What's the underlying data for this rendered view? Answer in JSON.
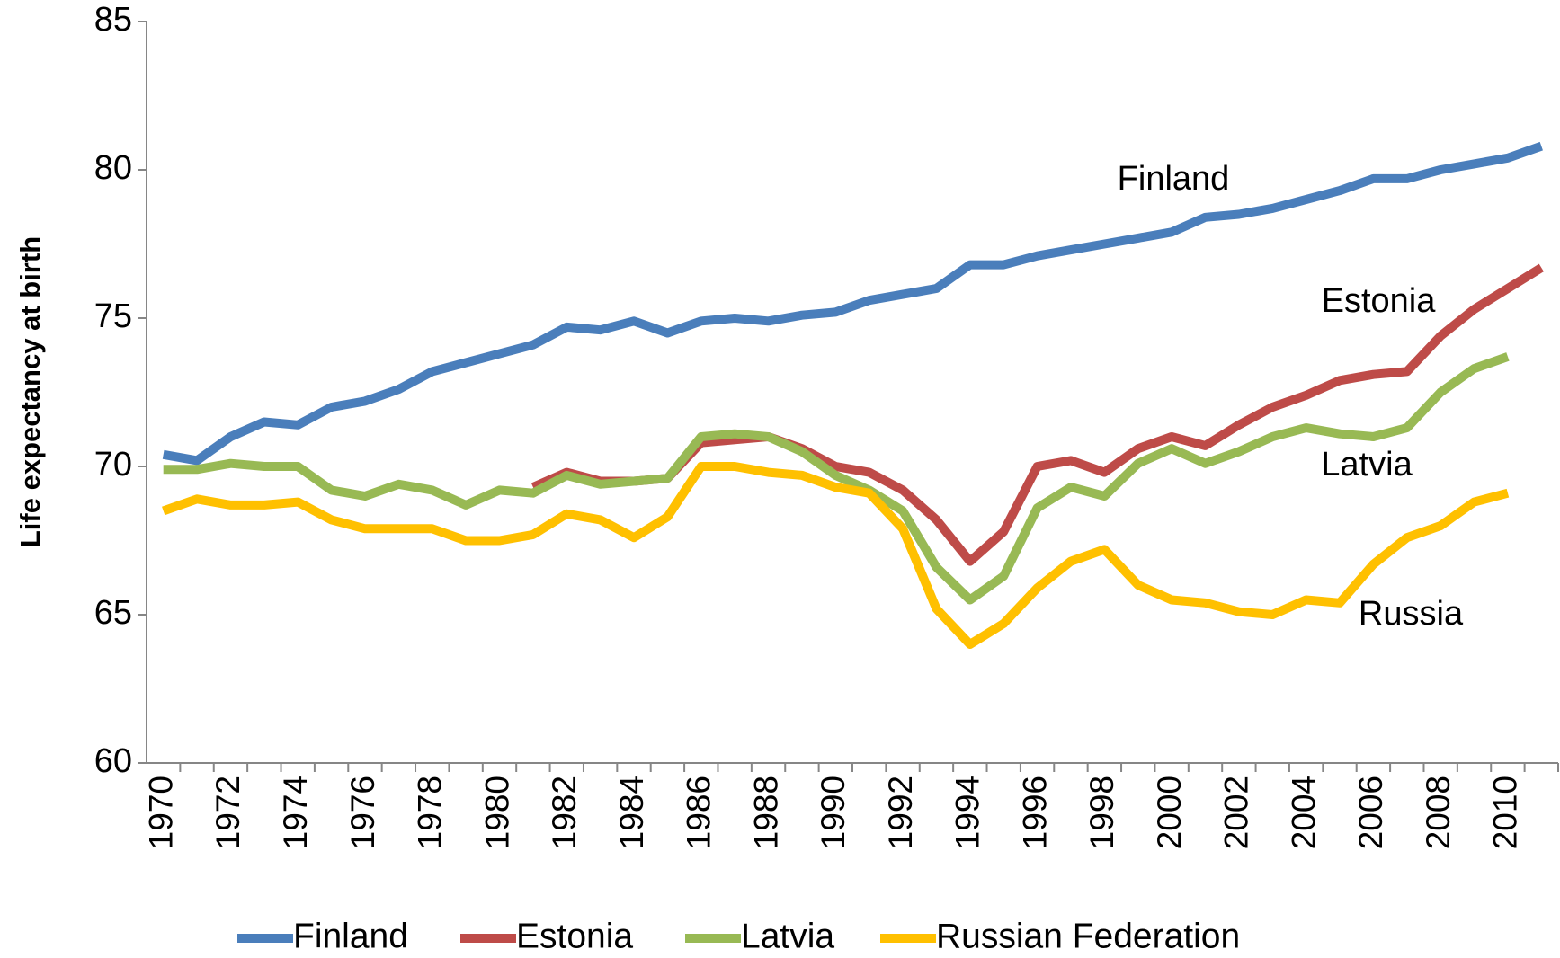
{
  "chart_data": {
    "type": "line",
    "y_label": "Life expectancy at birth",
    "categories": [
      "1970",
      null,
      "1972",
      null,
      "1974",
      null,
      "1976",
      null,
      "1978",
      null,
      "1980",
      null,
      "1982",
      null,
      "1984",
      null,
      "1986",
      null,
      "1988",
      null,
      "1990",
      null,
      "1992",
      null,
      "1994",
      null,
      "1996",
      null,
      "1998",
      null,
      "2000",
      null,
      "2002",
      null,
      "2004",
      null,
      "2006",
      null,
      "2008",
      null,
      "2010",
      null
    ],
    "series": [
      {
        "name": "Finland",
        "color": "#4a7ebb",
        "values": [
          70.4,
          70.2,
          71.0,
          71.5,
          71.4,
          72.0,
          72.2,
          72.6,
          73.2,
          73.5,
          73.8,
          74.1,
          74.7,
          74.6,
          74.9,
          74.5,
          74.9,
          75.0,
          74.9,
          75.1,
          75.2,
          75.6,
          75.8,
          76.0,
          76.8,
          76.8,
          77.1,
          77.3,
          77.5,
          77.7,
          77.9,
          78.4,
          78.5,
          78.7,
          79.0,
          79.3,
          79.7,
          79.7,
          80.0,
          80.2,
          80.4,
          80.8
        ]
      },
      {
        "name": "Estonia",
        "color": "#be4b48",
        "values": [
          null,
          null,
          null,
          null,
          null,
          null,
          null,
          null,
          null,
          null,
          null,
          69.3,
          69.8,
          69.5,
          69.5,
          69.6,
          70.8,
          70.9,
          71.0,
          70.6,
          70.0,
          69.8,
          69.2,
          68.2,
          66.8,
          67.8,
          70.0,
          70.2,
          69.8,
          70.6,
          71.0,
          70.7,
          71.4,
          72.0,
          72.4,
          72.9,
          73.1,
          73.2,
          74.4,
          75.3,
          76.0,
          76.7
        ]
      },
      {
        "name": "Latvia",
        "color": "#98b954",
        "values": [
          69.9,
          69.9,
          70.1,
          70.0,
          70.0,
          69.2,
          69.0,
          69.4,
          69.2,
          68.7,
          69.2,
          69.1,
          69.7,
          69.4,
          69.5,
          69.6,
          71.0,
          71.1,
          71.0,
          70.5,
          69.7,
          69.2,
          68.5,
          66.6,
          65.5,
          66.3,
          68.6,
          69.3,
          69.0,
          70.1,
          70.6,
          70.1,
          70.5,
          71.0,
          71.3,
          71.1,
          71.0,
          71.3,
          72.5,
          73.3,
          73.7,
          null
        ]
      },
      {
        "name": "Russian Federation",
        "color": "#ffc000",
        "values": [
          68.5,
          68.9,
          68.7,
          68.7,
          68.8,
          68.2,
          67.9,
          67.9,
          67.9,
          67.5,
          67.5,
          67.7,
          68.4,
          68.2,
          67.6,
          68.3,
          70.0,
          70.0,
          69.8,
          69.7,
          69.3,
          69.1,
          67.9,
          65.2,
          64.0,
          64.7,
          65.9,
          66.8,
          67.2,
          66.0,
          65.5,
          65.4,
          65.1,
          65.0,
          65.5,
          65.4,
          66.7,
          67.6,
          68.0,
          68.8,
          69.1,
          null
        ]
      }
    ],
    "annotations": [
      "Finland",
      "Estonia",
      "Latvia",
      "Russia"
    ],
    "ylim": [
      60,
      85
    ],
    "yticks": [
      60,
      65,
      70,
      75,
      80,
      85
    ],
    "grid": false,
    "legend": "bottom"
  }
}
